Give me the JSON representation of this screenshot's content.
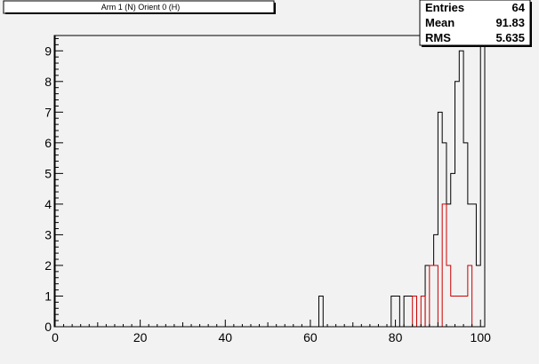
{
  "chart_data": {
    "type": "bar",
    "title": "Arm 1 (N) Orient 0 (H)",
    "xlabel": "",
    "ylabel": "",
    "xlim": [
      0,
      101
    ],
    "ylim": [
      0,
      9.5
    ],
    "x_ticks": [
      0,
      20,
      40,
      60,
      80,
      100
    ],
    "y_ticks": [
      0,
      1,
      2,
      3,
      4,
      5,
      6,
      7,
      8,
      9
    ],
    "bin_width": 1,
    "grid": false,
    "series": [
      {
        "color": "#000000",
        "bins": [
          {
            "x": 62,
            "value": 1
          },
          {
            "x": 79,
            "value": 1
          },
          {
            "x": 80,
            "value": 1
          },
          {
            "x": 82,
            "value": 1
          },
          {
            "x": 83,
            "value": 1
          },
          {
            "x": 84,
            "value": 1
          },
          {
            "x": 87,
            "value": 2
          },
          {
            "x": 88,
            "value": 2
          },
          {
            "x": 89,
            "value": 3
          },
          {
            "x": 90,
            "value": 7
          },
          {
            "x": 91,
            "value": 6
          },
          {
            "x": 92,
            "value": 4
          },
          {
            "x": 93,
            "value": 5
          },
          {
            "x": 94,
            "value": 8
          },
          {
            "x": 95,
            "value": 9
          },
          {
            "x": 96,
            "value": 6
          },
          {
            "x": 97,
            "value": 4
          },
          {
            "x": 98,
            "value": 4
          },
          {
            "x": 99,
            "value": 2
          },
          {
            "x": 100,
            "value": 10
          }
        ]
      },
      {
        "color": "#cc0000",
        "bins": [
          {
            "x": 84,
            "value": 1
          },
          {
            "x": 86,
            "value": 1
          },
          {
            "x": 88,
            "value": 2
          },
          {
            "x": 89,
            "value": 2
          },
          {
            "x": 91,
            "value": 4
          },
          {
            "x": 92,
            "value": 2
          },
          {
            "x": 93,
            "value": 1
          },
          {
            "x": 94,
            "value": 1
          },
          {
            "x": 95,
            "value": 1
          },
          {
            "x": 96,
            "value": 1
          },
          {
            "x": 97,
            "value": 2
          }
        ]
      }
    ],
    "stats": [
      {
        "label": "Entries",
        "value": "64"
      },
      {
        "label": "Mean",
        "value": "91.83"
      },
      {
        "label": "RMS",
        "value": "5.635"
      }
    ]
  }
}
